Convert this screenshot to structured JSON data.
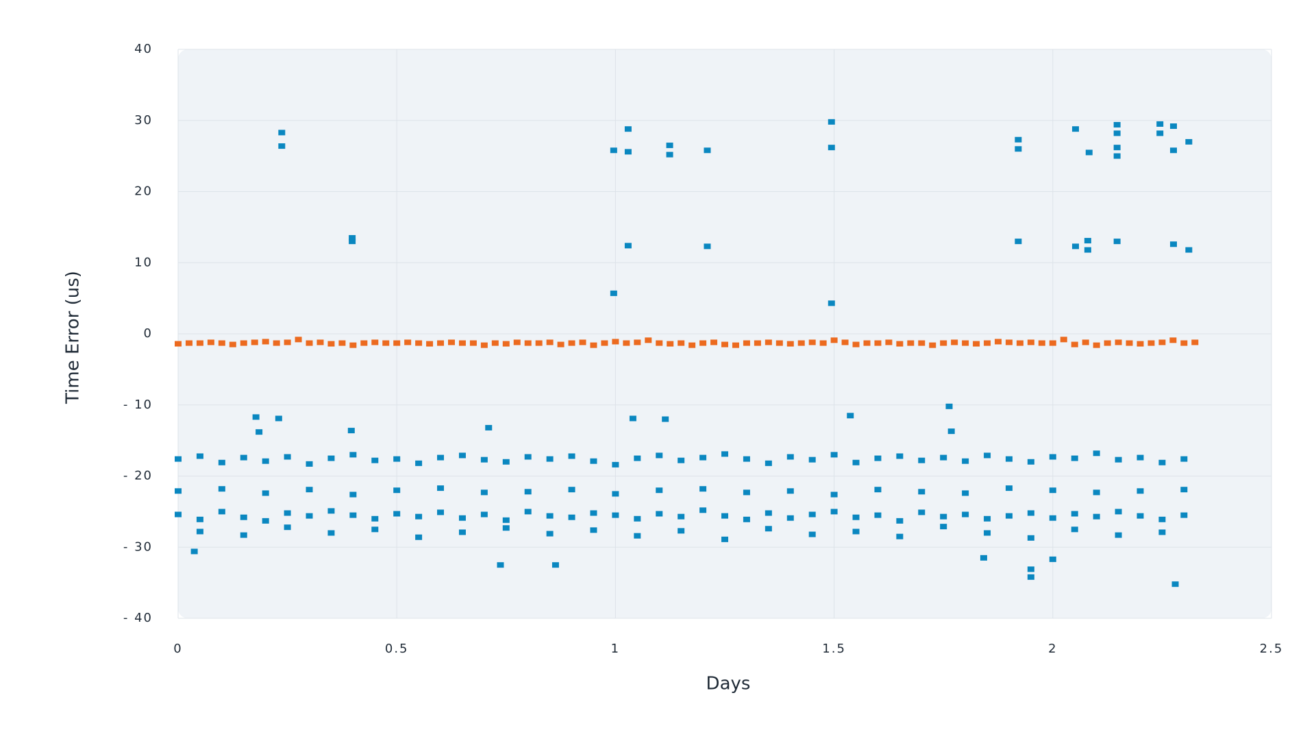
{
  "chart_data": {
    "type": "scatter",
    "x_label": "Days",
    "y_label": "Time Error (us)",
    "xlim": [
      0,
      2.5
    ],
    "xticks": [
      0,
      0.5,
      1,
      1.5,
      2,
      2.5
    ],
    "ylim": [
      -40,
      40
    ],
    "yticks": [
      40,
      30,
      20,
      10,
      0,
      {
        "value": -10,
        "label": "- 10"
      },
      {
        "value": -20,
        "label": "- 20"
      },
      {
        "value": -30,
        "label": "- 30"
      },
      {
        "value": -40,
        "label": "- 40"
      }
    ],
    "grid": true,
    "series": [
      {
        "color": "#0a87c0",
        "x": [
          0,
          0.05,
          0.1,
          0.15,
          0.2,
          0.25,
          0.3,
          0.35,
          0.4,
          0.45,
          0.5,
          0.55,
          0.6,
          0.65,
          0.7,
          0.75,
          0.8,
          0.85,
          0.9,
          0.95,
          1,
          1.05,
          1.1,
          1.15,
          1.2,
          1.25,
          1.3,
          1.35,
          1.4,
          1.45,
          1.5,
          1.55,
          1.6,
          1.65,
          1.7,
          1.75,
          1.8,
          1.85,
          1.9,
          1.95,
          2,
          2.05,
          2.1,
          2.15,
          2.2,
          2.25,
          2.3
        ],
        "values": [
          -17.6,
          -17.2,
          -18.1,
          -17.4,
          -17.9,
          -17.3,
          -18.3,
          -17.5,
          -17.0,
          -17.8,
          -17.6,
          -18.2,
          -17.4,
          -17.1,
          -17.7,
          -18.0,
          -17.3,
          -17.6,
          -17.2,
          -17.9,
          -18.4,
          -17.5,
          -17.1,
          -17.8,
          -17.4,
          -16.9,
          -17.6,
          -18.2,
          -17.3,
          -17.7,
          -17.0,
          -18.1,
          -17.5,
          -17.2,
          -17.8,
          -17.4,
          -17.9,
          -17.1,
          -17.6,
          -18.0,
          -17.3,
          -17.5,
          -16.8,
          -17.7,
          -17.4,
          -18.1,
          -17.6
        ]
      },
      {
        "color": "#0a87c0",
        "x": [
          0,
          0.1,
          0.2,
          0.3,
          0.4,
          0.5,
          0.6,
          0.7,
          0.8,
          0.9,
          1,
          1.1,
          1.2,
          1.3,
          1.4,
          1.5,
          1.6,
          1.7,
          1.8,
          1.9,
          2,
          2.1,
          2.2,
          2.3
        ],
        "values": [
          -22.1,
          -21.8,
          -22.4,
          -21.9,
          -22.6,
          -22.0,
          -21.7,
          -22.3,
          -22.2,
          -21.9,
          -22.5,
          -22.0,
          -21.8,
          -22.3,
          -22.1,
          -22.6,
          -21.9,
          -22.2,
          -22.4,
          -21.7,
          -22.0,
          -22.3,
          -22.1,
          -21.9
        ]
      },
      {
        "color": "#0a87c0",
        "x": [
          0,
          0.05,
          0.1,
          0.15,
          0.2,
          0.25,
          0.3,
          0.35,
          0.4,
          0.45,
          0.5,
          0.55,
          0.6,
          0.65,
          0.7,
          0.75,
          0.8,
          0.85,
          0.9,
          0.95,
          1,
          1.05,
          1.1,
          1.15,
          1.2,
          1.25,
          1.3,
          1.35,
          1.4,
          1.45,
          1.5,
          1.55,
          1.6,
          1.65,
          1.7,
          1.75,
          1.8,
          1.85,
          1.9,
          1.95,
          2,
          2.05,
          2.1,
          2.15,
          2.2,
          2.25,
          2.3
        ],
        "values": [
          -25.4,
          -26.1,
          -25.0,
          -25.8,
          -26.3,
          -25.2,
          -25.6,
          -24.9,
          -25.5,
          -26.0,
          -25.3,
          -25.7,
          -25.1,
          -25.9,
          -25.4,
          -26.2,
          -25.0,
          -25.6,
          -25.8,
          -25.2,
          -25.5,
          -26.0,
          -25.3,
          -25.7,
          -24.8,
          -25.6,
          -26.1,
          -25.2,
          -25.9,
          -25.4,
          -25.0,
          -25.8,
          -25.5,
          -26.3,
          -25.1,
          -25.7,
          -25.4,
          -26.0,
          -25.6,
          -25.2,
          -25.9,
          -25.3,
          -25.7,
          -25.0,
          -25.6,
          -26.1,
          -25.5
        ]
      },
      {
        "color": "#0a87c0",
        "x": [
          0.05,
          0.15,
          0.25,
          0.35,
          0.45,
          0.55,
          0.65,
          0.75,
          0.85,
          0.95,
          1.05,
          1.15,
          1.25,
          1.35,
          1.45,
          1.55,
          1.65,
          1.75,
          1.85,
          1.95,
          2.05,
          2.15,
          2.25
        ],
        "values": [
          -27.8,
          -28.3,
          -27.2,
          -28.0,
          -27.5,
          -28.6,
          -27.9,
          -27.3,
          -28.1,
          -27.6,
          -28.4,
          -27.7,
          -28.9,
          -27.4,
          -28.2,
          -27.8,
          -28.5,
          -27.1,
          -28.0,
          -28.7,
          -27.5,
          -28.3,
          -27.9
        ]
      },
      {
        "color": "#0a87c0",
        "x": [
          0.237,
          0.237,
          0.398,
          0.398,
          0.996,
          0.996,
          1.029,
          1.029,
          1.029,
          1.124,
          1.124,
          1.21,
          1.21,
          1.494,
          1.494,
          1.494,
          1.921,
          1.921,
          1.921,
          2.052,
          2.052,
          2.083,
          2.08,
          2.08,
          2.147,
          2.147,
          2.147,
          2.147,
          2.147,
          2.245,
          2.245,
          2.276,
          2.276,
          2.276,
          2.311,
          2.311
        ],
        "values": [
          28.3,
          26.4,
          13.5,
          13.0,
          25.8,
          5.7,
          28.8,
          25.6,
          12.4,
          26.5,
          25.2,
          25.8,
          12.3,
          29.8,
          26.2,
          4.3,
          27.3,
          26.0,
          13.0,
          28.8,
          12.3,
          25.5,
          13.1,
          11.8,
          29.4,
          28.2,
          26.2,
          25.0,
          13.0,
          29.5,
          28.2,
          29.2,
          25.8,
          12.6,
          27.0,
          11.8
        ]
      },
      {
        "color": "#0a87c0",
        "x": [
          0.037,
          0.737,
          0.863,
          1.842,
          1.95,
          1.95,
          2.28,
          2.0,
          0.178,
          0.23,
          0.185,
          0.396,
          0.71,
          1.04,
          1.114,
          1.537,
          1.763,
          1.768
        ],
        "values": [
          -30.6,
          -32.5,
          -32.5,
          -31.5,
          -33.1,
          -34.2,
          -35.2,
          -31.7,
          -11.7,
          -11.9,
          -13.8,
          -13.6,
          -13.2,
          -11.9,
          -12.0,
          -11.5,
          -10.2,
          -13.7
        ]
      },
      {
        "color": "#ec6a1f",
        "x": [
          0,
          0.025,
          0.05,
          0.075,
          0.1,
          0.125,
          0.15,
          0.175,
          0.2,
          0.225,
          0.25,
          0.275,
          0.3,
          0.325,
          0.35,
          0.375,
          0.4,
          0.425,
          0.45,
          0.475,
          0.5,
          0.525,
          0.55,
          0.575,
          0.6,
          0.625,
          0.65,
          0.675,
          0.7,
          0.725,
          0.75,
          0.775,
          0.8,
          0.825,
          0.85,
          0.875,
          0.9,
          0.925,
          0.95,
          0.975,
          1,
          1.025,
          1.05,
          1.075,
          1.1,
          1.125,
          1.15,
          1.175,
          1.2,
          1.225,
          1.25,
          1.275,
          1.3,
          1.325,
          1.35,
          1.375,
          1.4,
          1.425,
          1.45,
          1.475,
          1.5,
          1.525,
          1.55,
          1.575,
          1.6,
          1.625,
          1.65,
          1.675,
          1.7,
          1.725,
          1.75,
          1.775,
          1.8,
          1.825,
          1.85,
          1.875,
          1.9,
          1.925,
          1.95,
          1.975,
          2,
          2.025,
          2.05,
          2.075,
          2.1,
          2.125,
          2.15,
          2.175,
          2.2,
          2.225,
          2.25,
          2.275,
          2.3,
          2.325
        ],
        "values": [
          -1.4,
          -1.3,
          -1.3,
          -1.2,
          -1.3,
          -1.5,
          -1.3,
          -1.2,
          -1.1,
          -1.3,
          -1.2,
          -0.8,
          -1.3,
          -1.2,
          -1.4,
          -1.3,
          -1.6,
          -1.3,
          -1.2,
          -1.3,
          -1.3,
          -1.2,
          -1.3,
          -1.4,
          -1.3,
          -1.2,
          -1.3,
          -1.3,
          -1.6,
          -1.3,
          -1.4,
          -1.2,
          -1.3,
          -1.3,
          -1.2,
          -1.5,
          -1.3,
          -1.2,
          -1.6,
          -1.3,
          -1.1,
          -1.3,
          -1.2,
          -0.9,
          -1.3,
          -1.4,
          -1.3,
          -1.6,
          -1.3,
          -1.2,
          -1.5,
          -1.6,
          -1.3,
          -1.3,
          -1.2,
          -1.3,
          -1.4,
          -1.3,
          -1.2,
          -1.3,
          -0.9,
          -1.2,
          -1.5,
          -1.3,
          -1.3,
          -1.2,
          -1.4,
          -1.3,
          -1.3,
          -1.6,
          -1.3,
          -1.2,
          -1.3,
          -1.4,
          -1.3,
          -1.1,
          -1.2,
          -1.3,
          -1.2,
          -1.3,
          -1.3,
          -0.8,
          -1.5,
          -1.2,
          -1.6,
          -1.3,
          -1.2,
          -1.3,
          -1.4,
          -1.3,
          -1.2,
          -0.9,
          -1.3,
          -1.2
        ]
      }
    ]
  }
}
